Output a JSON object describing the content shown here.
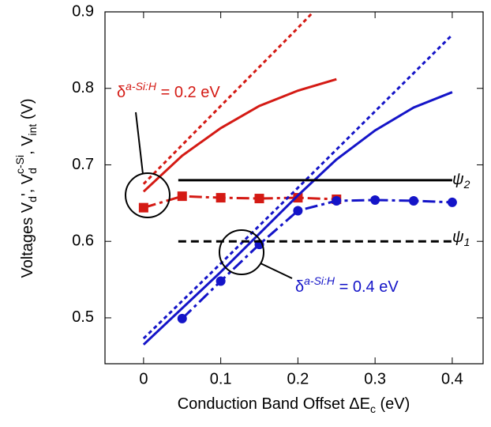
{
  "chart_data": {
    "type": "line",
    "xlim": [
      -0.05,
      0.44
    ],
    "ylim": [
      0.44,
      0.9
    ],
    "xticks": [
      0,
      0.1,
      0.2,
      0.3,
      0.4
    ],
    "yticks": [
      0.5,
      0.6,
      0.7,
      0.8,
      0.9
    ],
    "xlabel": [
      "Conduction Band Offset  ΔE",
      "c",
      " (eV)"
    ],
    "ylabel": [
      "Voltages V",
      "d",
      "', V",
      "d",
      "c-Si",
      ", V",
      "int",
      " (V)"
    ],
    "annotations": [
      {
        "text": [
          "δ",
          "a-Si:H",
          " = 0.2 eV"
        ],
        "color": "#d41a14"
      },
      {
        "text": [
          "δ",
          "a-Si:H",
          " = 0.4 eV"
        ],
        "color": "#1414c8"
      },
      {
        "text": [
          "ψ",
          "2"
        ],
        "color": "#000000"
      },
      {
        "text": [
          "ψ",
          "1"
        ],
        "color": "#000000"
      }
    ],
    "series": [
      {
        "color": "#d41a14",
        "dash": "dotted",
        "marker": "none",
        "x": [
          0,
          0.05,
          0.1,
          0.15,
          0.2,
          0.22
        ],
        "values": [
          0.675,
          0.726,
          0.777,
          0.828,
          0.879,
          0.9
        ]
      },
      {
        "color": "#d41a14",
        "dash": "solid",
        "marker": "none",
        "x": [
          0,
          0.05,
          0.1,
          0.15,
          0.2,
          0.25
        ],
        "values": [
          0.665,
          0.712,
          0.748,
          0.777,
          0.797,
          0.812
        ]
      },
      {
        "color": "#d41a14",
        "dash": "dashdot",
        "marker": "square",
        "x": [
          0,
          0.05,
          0.1,
          0.15,
          0.2,
          0.25
        ],
        "values": [
          0.644,
          0.659,
          0.657,
          0.656,
          0.657,
          0.655
        ]
      },
      {
        "color": "#1414c8",
        "dash": "dotted",
        "marker": "none",
        "x": [
          0,
          0.1,
          0.2,
          0.3,
          0.4
        ],
        "values": [
          0.473,
          0.571,
          0.67,
          0.77,
          0.87
        ]
      },
      {
        "color": "#1414c8",
        "dash": "solid",
        "marker": "none",
        "x": [
          0,
          0.1,
          0.2,
          0.25,
          0.3,
          0.35,
          0.4
        ],
        "values": [
          0.465,
          0.56,
          0.66,
          0.707,
          0.745,
          0.775,
          0.795
        ]
      },
      {
        "color": "#1414c8",
        "dash": "dashdot",
        "marker": "circle",
        "x": [
          0.05,
          0.1,
          0.15,
          0.2,
          0.25,
          0.3,
          0.35,
          0.4
        ],
        "values": [
          0.499,
          0.548,
          0.596,
          0.64,
          0.653,
          0.654,
          0.653,
          0.651
        ]
      },
      {
        "color": "#000000",
        "dash": "solid",
        "marker": "none",
        "x": [
          0.045,
          0.4
        ],
        "values": [
          0.68,
          0.68
        ]
      },
      {
        "color": "#000000",
        "dash": "dashed",
        "marker": "none",
        "x": [
          0.045,
          0.4
        ],
        "values": [
          0.6,
          0.6
        ]
      }
    ]
  }
}
